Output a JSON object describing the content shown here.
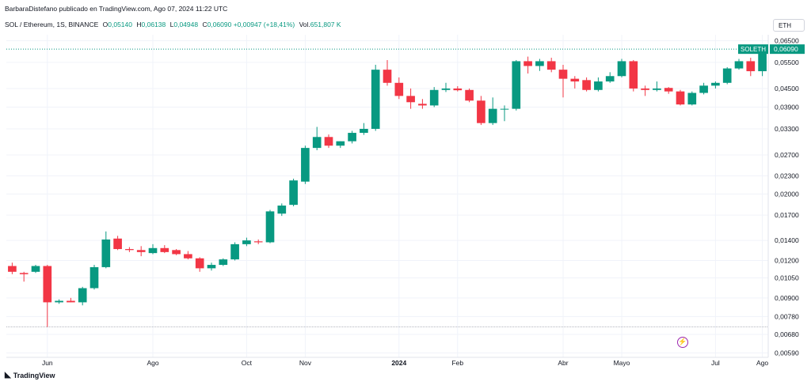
{
  "header": {
    "publisher": "BarbaraDistefano publicado en TradingView.com, Ago 07, 2024 11:22 UTC"
  },
  "legend": {
    "symbol": "SOL / Ethereum, 1S, BINANCE",
    "o_label": "O",
    "o": "0,05140",
    "h_label": "H",
    "h": "0,06138",
    "l_label": "L",
    "l": "0,04948",
    "c_label": "C",
    "c": "0,06090",
    "change": "+0,00947 (+18,41%)",
    "vol_label": "Vol.",
    "vol": "651,807 K"
  },
  "currency_button": "ETH",
  "footer": {
    "brand": "TradingView"
  },
  "icons": {
    "footer_logo": "tradingview-logo-icon",
    "event": "lightning-bolt-icon"
  },
  "colors": {
    "up": "#089981",
    "down": "#f23645",
    "price_tag": "#089981",
    "event": "#9c27b0"
  },
  "chart_data": {
    "type": "candlestick",
    "scale": "log",
    "x_ticks": [
      "Jun",
      "Ago",
      "Oct",
      "Nov",
      "2024",
      "Feb",
      "Abr",
      "Mayo",
      "Jul",
      "Ago"
    ],
    "y_ticks": [
      0.065,
      0.055,
      0.045,
      0.039,
      0.033,
      0.027,
      0.023,
      0.02,
      0.017,
      0.014,
      0.012,
      0.0105,
      0.009,
      0.0078,
      0.0068,
      0.0059
    ],
    "y_tick_labels": [
      "0,06500",
      "0,05500",
      "0,04500",
      "0,03900",
      "0,03300",
      "0,02700",
      "0,02300",
      "0,02000",
      "0,01700",
      "0,01400",
      "0,01200",
      "0,01050",
      "0,00900",
      "0,00780",
      "0,00680",
      "0,00590"
    ],
    "ylim": [
      0.0057,
      0.068
    ],
    "last_price_label": "SOLETH",
    "last_price": "0,06090",
    "lows_line": 0.0072,
    "candles": [
      [
        0.0115,
        0.0118,
        0.0108,
        0.011
      ],
      [
        0.0109,
        0.011,
        0.0102,
        0.0108
      ],
      [
        0.011,
        0.0116,
        0.0109,
        0.0115
      ],
      [
        0.0115,
        0.0116,
        0.0072,
        0.0087
      ],
      [
        0.0087,
        0.0089,
        0.0086,
        0.0088
      ],
      [
        0.0088,
        0.009,
        0.0087,
        0.0087
      ],
      [
        0.0087,
        0.0098,
        0.0085,
        0.0097
      ],
      [
        0.0097,
        0.0116,
        0.0096,
        0.0114
      ],
      [
        0.0114,
        0.015,
        0.0113,
        0.0141
      ],
      [
        0.0142,
        0.0145,
        0.013,
        0.0131
      ],
      [
        0.0131,
        0.0133,
        0.0128,
        0.013
      ],
      [
        0.013,
        0.0134,
        0.0124,
        0.0128
      ],
      [
        0.0127,
        0.0136,
        0.0126,
        0.0132
      ],
      [
        0.0132,
        0.0135,
        0.0127,
        0.0128
      ],
      [
        0.013,
        0.0131,
        0.0125,
        0.0126
      ],
      [
        0.0126,
        0.0129,
        0.0121,
        0.0122
      ],
      [
        0.0122,
        0.0123,
        0.011,
        0.0113
      ],
      [
        0.0113,
        0.0118,
        0.0111,
        0.0116
      ],
      [
        0.0116,
        0.0122,
        0.0115,
        0.0121
      ],
      [
        0.0121,
        0.0138,
        0.012,
        0.0136
      ],
      [
        0.0136,
        0.0143,
        0.0134,
        0.014
      ],
      [
        0.0139,
        0.0141,
        0.0136,
        0.0138
      ],
      [
        0.0138,
        0.0177,
        0.0137,
        0.0175
      ],
      [
        0.0172,
        0.0186,
        0.0169,
        0.0183
      ],
      [
        0.0184,
        0.0225,
        0.0182,
        0.0222
      ],
      [
        0.022,
        0.029,
        0.0216,
        0.0285
      ],
      [
        0.0285,
        0.0335,
        0.028,
        0.031
      ],
      [
        0.031,
        0.0316,
        0.0285,
        0.029
      ],
      [
        0.029,
        0.03,
        0.0285,
        0.03
      ],
      [
        0.03,
        0.0325,
        0.0295,
        0.032
      ],
      [
        0.032,
        0.0345,
        0.0315,
        0.033
      ],
      [
        0.033,
        0.054,
        0.0325,
        0.052
      ],
      [
        0.052,
        0.056,
        0.046,
        0.047
      ],
      [
        0.047,
        0.049,
        0.0415,
        0.0425
      ],
      [
        0.0425,
        0.045,
        0.0385,
        0.0405
      ],
      [
        0.04,
        0.0415,
        0.0385,
        0.0395
      ],
      [
        0.0395,
        0.0455,
        0.039,
        0.0445
      ],
      [
        0.0445,
        0.047,
        0.0438,
        0.045
      ],
      [
        0.045,
        0.0458,
        0.044,
        0.0444
      ],
      [
        0.0445,
        0.045,
        0.0405,
        0.041
      ],
      [
        0.041,
        0.0425,
        0.034,
        0.0345
      ],
      [
        0.0345,
        0.042,
        0.034,
        0.0385
      ],
      [
        0.0383,
        0.0395,
        0.035,
        0.0385
      ],
      [
        0.0385,
        0.056,
        0.038,
        0.0555
      ],
      [
        0.0555,
        0.0575,
        0.0505,
        0.0535
      ],
      [
        0.0535,
        0.0565,
        0.0515,
        0.0555
      ],
      [
        0.0555,
        0.057,
        0.051,
        0.052
      ],
      [
        0.052,
        0.054,
        0.042,
        0.0485
      ],
      [
        0.0485,
        0.0495,
        0.045,
        0.0475
      ],
      [
        0.048,
        0.049,
        0.044,
        0.0445
      ],
      [
        0.0445,
        0.049,
        0.044,
        0.0475
      ],
      [
        0.0475,
        0.051,
        0.047,
        0.0495
      ],
      [
        0.0495,
        0.0565,
        0.049,
        0.0555
      ],
      [
        0.0555,
        0.056,
        0.044,
        0.045
      ],
      [
        0.045,
        0.046,
        0.0425,
        0.0445
      ],
      [
        0.0445,
        0.0475,
        0.044,
        0.045
      ],
      [
        0.0452,
        0.0455,
        0.0432,
        0.044
      ],
      [
        0.044,
        0.0445,
        0.0395,
        0.0398
      ],
      [
        0.0398,
        0.044,
        0.0395,
        0.0435
      ],
      [
        0.0435,
        0.047,
        0.043,
        0.046
      ],
      [
        0.046,
        0.0475,
        0.045,
        0.047
      ],
      [
        0.047,
        0.053,
        0.0465,
        0.0525
      ],
      [
        0.0525,
        0.0565,
        0.052,
        0.0555
      ],
      [
        0.0555,
        0.057,
        0.0495,
        0.0514
      ],
      [
        0.0514,
        0.0614,
        0.0495,
        0.0609
      ]
    ]
  }
}
